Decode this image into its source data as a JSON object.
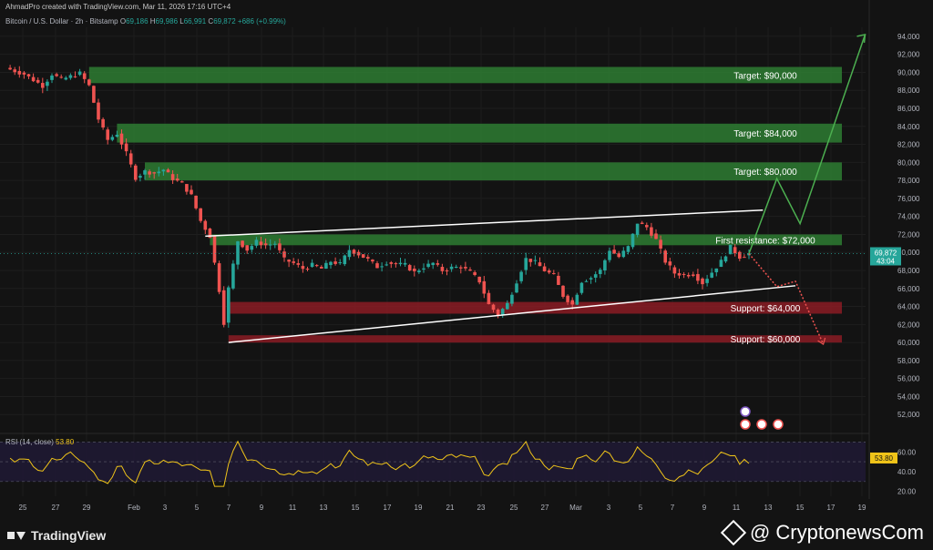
{
  "header": {
    "creator_line": "AhmadPro created with TradingView.com, Mar 11, 2026 17:16 UTC+4"
  },
  "legend": {
    "symbol": "Bitcoin / U.S. Dollar · 2h · Bitstamp",
    "o_key": "O",
    "o_val": "69,186",
    "h_key": "H",
    "h_val": "69,986",
    "l_key": "L",
    "l_val": "66,991",
    "c_key": "C",
    "c_val": "69,872",
    "change": "+686 (+0.99%)"
  },
  "chart_data": {
    "type": "candlestick",
    "y_axis": {
      "range": [
        50000,
        95000
      ],
      "ticks": [
        "52,000",
        "54,000",
        "56,000",
        "58,000",
        "60,000",
        "62,000",
        "64,000",
        "66,000",
        "68,000",
        "70,000",
        "72,000",
        "74,000",
        "76,000",
        "78,000",
        "80,000",
        "82,000",
        "84,000",
        "86,000",
        "88,000",
        "90,000",
        "92,000",
        "94,000"
      ]
    },
    "x_axis": {
      "ticks": [
        "25",
        "27",
        "29",
        "Feb",
        "3",
        "5",
        "7",
        "9",
        "11",
        "13",
        "15",
        "17",
        "19",
        "21",
        "23",
        "25",
        "27",
        "Mar",
        "3",
        "5",
        "7",
        "9",
        "11",
        "13",
        "15",
        "17",
        "19"
      ]
    },
    "price_path": [
      [
        0,
        90500
      ],
      [
        2,
        89800
      ],
      [
        4,
        88500
      ],
      [
        5,
        89800
      ],
      [
        6,
        89200
      ],
      [
        8,
        89900
      ],
      [
        9,
        88500
      ],
      [
        10,
        84800
      ],
      [
        11,
        82500
      ],
      [
        12,
        83200
      ],
      [
        13,
        81000
      ],
      [
        14,
        78300
      ],
      [
        15,
        79000
      ],
      [
        16,
        78800
      ],
      [
        17,
        79200
      ],
      [
        18,
        78200
      ],
      [
        19,
        77600
      ],
      [
        20,
        76300
      ],
      [
        21,
        73500
      ],
      [
        22,
        71800
      ],
      [
        23,
        65800
      ],
      [
        23.5,
        62200
      ],
      [
        24,
        66000
      ],
      [
        25,
        71300
      ],
      [
        26,
        70300
      ],
      [
        27,
        71200
      ],
      [
        28,
        70800
      ],
      [
        29,
        71000
      ],
      [
        30,
        69200
      ],
      [
        31,
        68800
      ],
      [
        32,
        68200
      ],
      [
        33,
        68600
      ],
      [
        34,
        68200
      ],
      [
        35,
        69000
      ],
      [
        36,
        68700
      ],
      [
        37,
        70300
      ],
      [
        38,
        69800
      ],
      [
        39,
        69200
      ],
      [
        40,
        68400
      ],
      [
        41,
        68900
      ],
      [
        42,
        68700
      ],
      [
        43,
        68600
      ],
      [
        44,
        67800
      ],
      [
        45,
        68400
      ],
      [
        46,
        68800
      ],
      [
        47,
        68000
      ],
      [
        48,
        68300
      ],
      [
        49,
        68400
      ],
      [
        50,
        67800
      ],
      [
        51,
        66800
      ],
      [
        52,
        64200
      ],
      [
        53,
        63100
      ],
      [
        54,
        64300
      ],
      [
        55,
        66800
      ],
      [
        56,
        69300
      ],
      [
        57,
        68900
      ],
      [
        58,
        68000
      ],
      [
        59,
        67400
      ],
      [
        60,
        65200
      ],
      [
        61,
        64200
      ],
      [
        62,
        66800
      ],
      [
        63,
        67200
      ],
      [
        64,
        68000
      ],
      [
        65,
        70300
      ],
      [
        66,
        69500
      ],
      [
        67,
        70600
      ],
      [
        68,
        73300
      ],
      [
        69,
        72800
      ],
      [
        70,
        71400
      ],
      [
        71,
        69000
      ],
      [
        72,
        67700
      ],
      [
        73,
        67500
      ],
      [
        74,
        67600
      ],
      [
        75,
        66600
      ],
      [
        76,
        67800
      ],
      [
        77,
        69000
      ],
      [
        78,
        70600
      ],
      [
        79,
        69500
      ],
      [
        80,
        69872
      ]
    ],
    "last_price": "69,872",
    "countdown": "43:04",
    "zones": [
      {
        "label": "Target: $90,000",
        "low": 88800,
        "high": 90600,
        "kind": "target",
        "x0": 9,
        "x1": 90
      },
      {
        "label": "Target: $84,000",
        "low": 82200,
        "high": 84300,
        "kind": "target",
        "x0": 12,
        "x1": 90
      },
      {
        "label": "Target: $80,000",
        "low": 78000,
        "high": 80000,
        "kind": "target",
        "x0": 15,
        "x1": 90
      },
      {
        "label": "First resistance: $72,000",
        "low": 70800,
        "high": 72000,
        "kind": "resistance",
        "x0": 22,
        "x1": 90
      },
      {
        "label": "Support: $64,000",
        "low": 63200,
        "high": 64500,
        "kind": "support",
        "x0": 24,
        "x1": 90
      },
      {
        "label": "Support: $60,000",
        "low": 60000,
        "high": 60800,
        "kind": "support",
        "x0": 24,
        "x1": 90
      }
    ],
    "trendlines": [
      {
        "name": "upper-trendline",
        "from": [
          21.5,
          71800
        ],
        "to": [
          81.5,
          74700
        ]
      },
      {
        "name": "lower-trendline",
        "from": [
          24,
          60000
        ],
        "to": [
          85,
          66300
        ]
      }
    ],
    "bull_projection": [
      [
        80,
        69872
      ],
      [
        83,
        78200
      ],
      [
        85.5,
        73200
      ],
      [
        92.5,
        94200
      ]
    ],
    "bear_projection": [
      [
        80,
        69872
      ],
      [
        83,
        66200
      ],
      [
        85,
        66800
      ],
      [
        88,
        59800
      ]
    ],
    "rsi": {
      "label": "RSI (14, close)",
      "value": "53.80",
      "levels": [
        70,
        50,
        30
      ],
      "ticks": [
        "60.00",
        "40.00",
        "20.00"
      ],
      "range": [
        15,
        75
      ]
    },
    "colors": {
      "up": "#26a69a",
      "down": "#ef5350",
      "target": "#2e7d32",
      "support": "#8b1c24",
      "rsi": "#f0c419",
      "bull": "#4caf50",
      "bear": "#ef5350"
    }
  },
  "footer": {
    "brand": "TradingView",
    "watermark": "@ CryptonewsCom"
  }
}
